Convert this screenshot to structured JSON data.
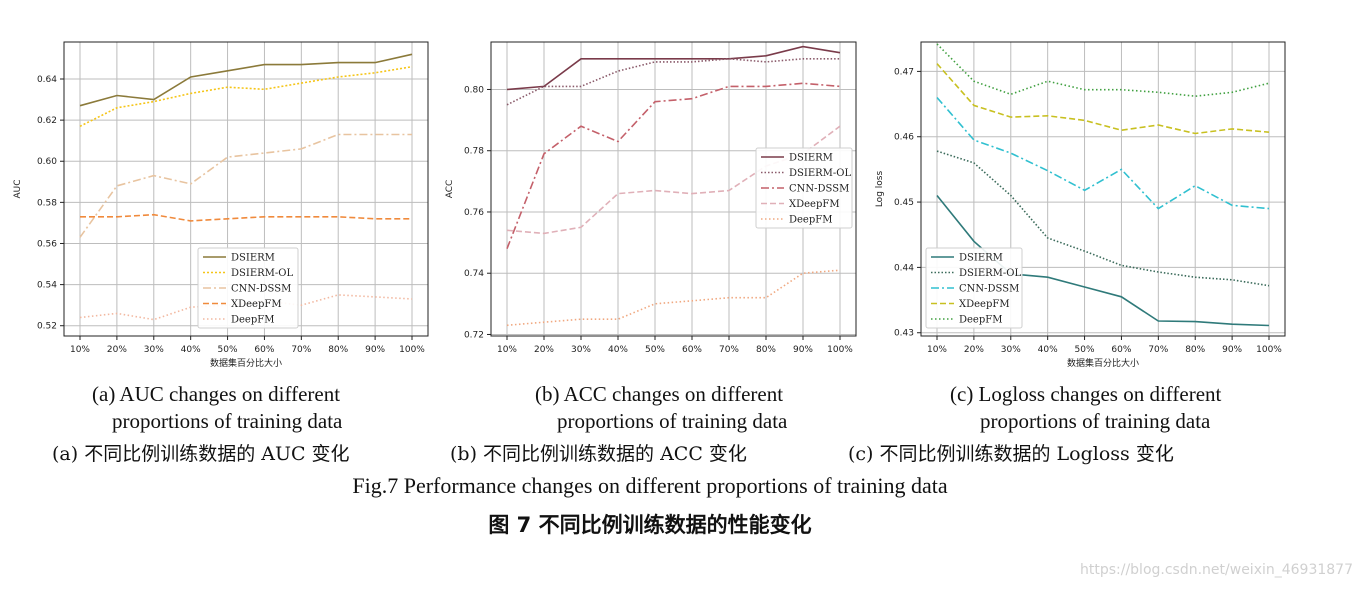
{
  "chart_data": [
    {
      "type": "line",
      "ylabel": "AUC",
      "xlabel": "数据集百分比大小",
      "categories": [
        "10%",
        "20%",
        "30%",
        "40%",
        "50%",
        "60%",
        "70%",
        "80%",
        "90%",
        "100%"
      ],
      "ylim": [
        0.515,
        0.658
      ],
      "yticks": [
        "0.52",
        "0.54",
        "0.56",
        "0.58",
        "0.60",
        "0.62",
        "0.64"
      ],
      "grid": true,
      "legend": "lower-center",
      "series": [
        {
          "name": "DSIERM",
          "color": "#8b7a3a",
          "dash": "",
          "values": [
            0.627,
            0.632,
            0.63,
            0.641,
            0.644,
            0.647,
            0.647,
            0.648,
            0.648,
            0.652
          ]
        },
        {
          "name": "DSIERM-OL",
          "color": "#f5c518",
          "dash": "2,2",
          "values": [
            0.617,
            0.626,
            0.629,
            0.633,
            0.636,
            0.635,
            0.638,
            0.641,
            0.643,
            0.646
          ]
        },
        {
          "name": "CNN-DSSM",
          "color": "#e8c4a0",
          "dash": "8,3,2,3",
          "values": [
            0.563,
            0.588,
            0.593,
            0.589,
            0.602,
            0.604,
            0.606,
            0.613,
            0.613,
            0.613
          ]
        },
        {
          "name": "XDeepFM",
          "color": "#f08a3c",
          "dash": "6,3",
          "values": [
            0.573,
            0.573,
            0.574,
            0.571,
            0.572,
            0.573,
            0.573,
            0.573,
            0.572,
            0.572
          ]
        },
        {
          "name": "DeepFM",
          "color": "#f2b8a0",
          "dash": "1.5,2.5",
          "values": [
            0.524,
            0.526,
            0.523,
            0.529,
            0.53,
            0.532,
            0.53,
            0.535,
            0.534,
            0.533
          ]
        }
      ]
    },
    {
      "type": "line",
      "ylabel": "ACC",
      "xlabel": "",
      "categories": [
        "10%",
        "20%",
        "30%",
        "40%",
        "50%",
        "60%",
        "70%",
        "80%",
        "90%",
        "100%"
      ],
      "ylim": [
        0.7195,
        0.8155
      ],
      "yticks": [
        "0.72",
        "0.74",
        "0.76",
        "0.78",
        "0.80"
      ],
      "grid": true,
      "legend": "center-right",
      "series": [
        {
          "name": "DSIERM",
          "color": "#7a3b4a",
          "dash": "",
          "values": [
            0.8,
            0.801,
            0.81,
            0.81,
            0.81,
            0.81,
            0.81,
            0.811,
            0.814,
            0.812
          ]
        },
        {
          "name": "DSIERM-OL",
          "color": "#8a5a6a",
          "dash": "1.5,2",
          "values": [
            0.795,
            0.801,
            0.801,
            0.806,
            0.809,
            0.809,
            0.81,
            0.809,
            0.81,
            0.81
          ]
        },
        {
          "name": "CNN-DSSM",
          "color": "#c4606a",
          "dash": "8,3,2,3",
          "values": [
            0.748,
            0.779,
            0.788,
            0.783,
            0.796,
            0.797,
            0.801,
            0.801,
            0.802,
            0.801
          ]
        },
        {
          "name": "XDeepFM",
          "color": "#e0b0b8",
          "dash": "6,3",
          "values": [
            0.754,
            0.753,
            0.755,
            0.766,
            0.767,
            0.766,
            0.767,
            0.775,
            0.779,
            0.788
          ]
        },
        {
          "name": "DeepFM",
          "color": "#f0a880",
          "dash": "1.5,2.5",
          "values": [
            0.723,
            0.724,
            0.725,
            0.725,
            0.73,
            0.731,
            0.732,
            0.732,
            0.74,
            0.741
          ]
        }
      ]
    },
    {
      "type": "line",
      "ylabel": "Log loss",
      "xlabel": "数据集百分比大小",
      "categories": [
        "10%",
        "20%",
        "30%",
        "40%",
        "50%",
        "60%",
        "70%",
        "80%",
        "90%",
        "100%"
      ],
      "ylim": [
        0.4295,
        0.4745
      ],
      "yticks": [
        "0.43",
        "0.44",
        "0.45",
        "0.46",
        "0.47"
      ],
      "grid": true,
      "legend": "lower-left",
      "series": [
        {
          "name": "DSIERM",
          "color": "#2f7a7a",
          "dash": "",
          "values": [
            0.451,
            0.444,
            0.439,
            0.4385,
            0.437,
            0.4355,
            0.4318,
            0.4317,
            0.4313,
            0.4311
          ]
        },
        {
          "name": "DSIERM-OL",
          "color": "#3a6a5a",
          "dash": "1.5,2",
          "values": [
            0.4578,
            0.456,
            0.451,
            0.4445,
            0.4425,
            0.4403,
            0.4393,
            0.4385,
            0.4381,
            0.4372
          ]
        },
        {
          "name": "CNN-DSSM",
          "color": "#30c0d0",
          "dash": "8,3,2,3",
          "values": [
            0.466,
            0.4595,
            0.4575,
            0.4548,
            0.4518,
            0.455,
            0.449,
            0.4525,
            0.4495,
            0.449
          ]
        },
        {
          "name": "XDeepFM",
          "color": "#c8c020",
          "dash": "6,3",
          "values": [
            0.4712,
            0.4648,
            0.463,
            0.4632,
            0.4625,
            0.461,
            0.4618,
            0.4605,
            0.4612,
            0.4607
          ]
        },
        {
          "name": "DeepFM",
          "color": "#40a040",
          "dash": "1.5,2.5",
          "values": [
            0.4742,
            0.4685,
            0.4665,
            0.4685,
            0.4672,
            0.4672,
            0.4668,
            0.4662,
            0.4668,
            0.4682
          ]
        }
      ]
    }
  ],
  "captions": {
    "a_en_1": "(a) AUC changes on different",
    "a_en_2": "proportions of training data",
    "b_en_1": "(b) ACC changes on different",
    "b_en_2": "proportions of training data",
    "c_en_1": "(c) Logloss changes on different",
    "c_en_2": "proportions of training data",
    "a_zh": "(a)  不同比例训练数据的 AUC 变化",
    "b_zh": "(b)  不同比例训练数据的 ACC 变化",
    "c_zh": "(c)  不同比例训练数据的 Logloss 变化",
    "fig_en": "Fig.7    Performance changes on different proportions of training data",
    "fig_zh": "图 7    不同比例训练数据的性能变化"
  },
  "watermark": "https://blog.csdn.net/weixin_46931877"
}
